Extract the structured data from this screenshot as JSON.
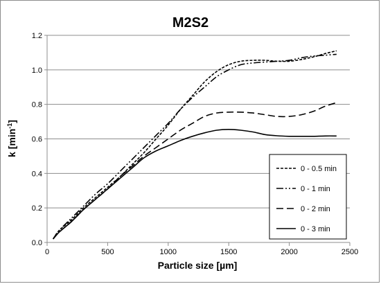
{
  "chart_data": {
    "type": "line",
    "title": "M2S2",
    "xlabel": "Particle size [",
    "xlabel_unit": "µm",
    "xlabel_end": "]",
    "ylabel": "k [min",
    "ylabel_sup": "-1",
    "ylabel_end": "]",
    "xlim": [
      0,
      2500
    ],
    "ylim": [
      0,
      1.2
    ],
    "xticks": [
      0,
      500,
      1000,
      1500,
      2000,
      2500
    ],
    "yticks": [
      "0.0",
      "0.2",
      "0.4",
      "0.6",
      "0.8",
      "1.0",
      "1.2"
    ],
    "grid": "horizontal",
    "legend_position": "bottom-right",
    "series": [
      {
        "name": "0 - 0.5 min",
        "dash": "short-dash",
        "x": [
          50,
          100,
          200,
          300,
          400,
          500,
          600,
          700,
          800,
          900,
          1000,
          1100,
          1200,
          1300,
          1400,
          1500,
          1600,
          1700,
          1800,
          1900,
          2000,
          2100,
          2200,
          2300,
          2390
        ],
        "y": [
          0.02,
          0.07,
          0.13,
          0.2,
          0.26,
          0.32,
          0.38,
          0.45,
          0.52,
          0.6,
          0.68,
          0.77,
          0.85,
          0.93,
          0.99,
          1.03,
          1.05,
          1.055,
          1.055,
          1.05,
          1.05,
          1.06,
          1.075,
          1.095,
          1.11
        ]
      },
      {
        "name": "0 - 1 min",
        "dash": "dash-dot-dot",
        "x": [
          50,
          100,
          200,
          300,
          400,
          500,
          600,
          700,
          800,
          900,
          1000,
          1100,
          1200,
          1300,
          1400,
          1500,
          1600,
          1700,
          1800,
          1900,
          2000,
          2100,
          2200,
          2300,
          2390
        ],
        "y": [
          0.02,
          0.07,
          0.14,
          0.21,
          0.28,
          0.34,
          0.41,
          0.48,
          0.55,
          0.62,
          0.69,
          0.77,
          0.84,
          0.9,
          0.96,
          1.0,
          1.03,
          1.04,
          1.045,
          1.05,
          1.055,
          1.07,
          1.08,
          1.085,
          1.09
        ]
      },
      {
        "name": "0 - 2 min",
        "dash": "long-dash",
        "x": [
          50,
          100,
          200,
          300,
          400,
          500,
          600,
          700,
          800,
          900,
          1000,
          1100,
          1200,
          1300,
          1400,
          1500,
          1600,
          1700,
          1800,
          1900,
          2000,
          2100,
          2200,
          2300,
          2390
        ],
        "y": [
          0.02,
          0.06,
          0.12,
          0.19,
          0.25,
          0.31,
          0.38,
          0.44,
          0.5,
          0.55,
          0.6,
          0.65,
          0.69,
          0.73,
          0.75,
          0.755,
          0.755,
          0.75,
          0.74,
          0.73,
          0.73,
          0.74,
          0.76,
          0.79,
          0.81
        ]
      },
      {
        "name": "0 - 3 min",
        "dash": "solid",
        "x": [
          50,
          100,
          200,
          300,
          400,
          500,
          600,
          700,
          800,
          900,
          1000,
          1100,
          1200,
          1300,
          1400,
          1500,
          1600,
          1700,
          1800,
          1900,
          2000,
          2100,
          2200,
          2300,
          2390
        ],
        "y": [
          0.02,
          0.06,
          0.12,
          0.19,
          0.25,
          0.31,
          0.37,
          0.43,
          0.49,
          0.53,
          0.56,
          0.59,
          0.615,
          0.635,
          0.65,
          0.655,
          0.65,
          0.64,
          0.625,
          0.618,
          0.615,
          0.615,
          0.615,
          0.617,
          0.617
        ]
      }
    ]
  },
  "colors": {
    "line": "#000000",
    "grid": "#8c8c8c",
    "axis": "#8c8c8c",
    "frame": "#8c8c8c"
  }
}
